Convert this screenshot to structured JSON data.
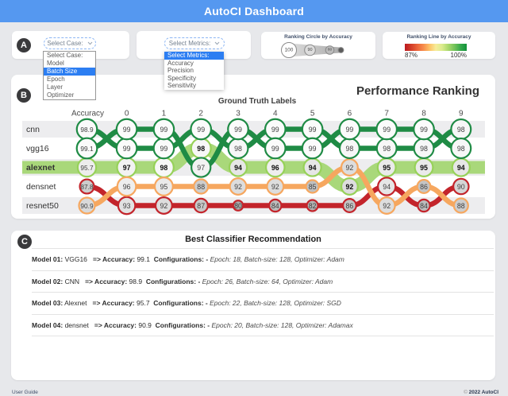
{
  "header": {
    "title": "AutoCI Dashboard"
  },
  "section_a": {
    "badge": "A",
    "case_select": {
      "button_label": "Select Case:",
      "options": [
        "Select Case:",
        "Model",
        "Batch Size",
        "Epoch",
        "Layer",
        "Optimizer"
      ],
      "selected": "Batch Size"
    },
    "metrics_select": {
      "button_label": "Select Metrics:",
      "options": [
        "Select Metrics:",
        "Accuracy",
        "Precision",
        "Specificity",
        "Sensitivity"
      ],
      "selected": "Select Metrics:"
    },
    "circle_legend": {
      "title": "Ranking Circle by Accuracy",
      "circles": [
        {
          "label": "100",
          "r": 9.5,
          "fill": "#ffffff",
          "text_size": 6.5
        },
        {
          "label": "90",
          "r": 6.8,
          "fill": "#dddddd",
          "text_size": 5.5
        },
        {
          "label": "80",
          "r": 5.3,
          "fill": "#bcbcbc",
          "text_size": 4.8
        },
        {
          "label": "",
          "r": 3.4,
          "fill": "#5c5c5c",
          "text_size": 4
        }
      ]
    },
    "line_legend": {
      "title": "Ranking Line by Accuracy",
      "min_label": "87%",
      "max_label": "100%",
      "gradient": [
        "#bb191f",
        "#d23c28",
        "#ea6339",
        "#f78c4b",
        "#fdc266",
        "#f7ec99",
        "#dcec8e",
        "#abd96d",
        "#74c35a",
        "#35a94b",
        "#12913a"
      ]
    }
  },
  "panel_b": {
    "badge": "B",
    "title": "Performance Ranking",
    "axis_title": "Ground Truth Labels"
  },
  "chart_data": {
    "type": "bump",
    "columns": [
      "Accuracy",
      "0",
      "1",
      "2",
      "3",
      "4",
      "5",
      "6",
      "7",
      "8",
      "9"
    ],
    "row_labels": [
      "cnn",
      "vgg16",
      "alexnet",
      "densnet",
      "resnet50"
    ],
    "highlighted_row": "alexnet",
    "colors": {
      "cnn": "#1f8b45",
      "vgg16": "#1f8b45",
      "alexnet": "#a9d87a",
      "densnet": "#f6a75f",
      "resnet50": "#c3242b"
    },
    "circle_stroke": {
      "alexnet": "#97d159"
    },
    "series": [
      {
        "name": "alexnet",
        "thickness": 16,
        "tail": true,
        "rows": [
          3,
          3,
          3,
          2,
          3,
          3,
          3,
          4,
          3,
          3,
          3
        ],
        "values": [
          95.7,
          97,
          98,
          98,
          94,
          96,
          94,
          92,
          95,
          95,
          94
        ]
      },
      {
        "name": "resnet50",
        "thickness": 6.5,
        "tail": false,
        "rows": [
          4,
          5,
          5,
          5,
          5,
          5,
          5,
          5,
          4,
          5,
          4
        ],
        "values": [
          87.8,
          93,
          92,
          87,
          80,
          84,
          82,
          86,
          94,
          84,
          90
        ]
      },
      {
        "name": "densnet",
        "thickness": 6.5,
        "tail": false,
        "rows": [
          5,
          4,
          4,
          4,
          4,
          4,
          4,
          3,
          5,
          4,
          5
        ],
        "values": [
          90.9,
          96,
          95,
          88,
          92,
          92,
          85,
          92,
          92,
          86,
          88
        ]
      },
      {
        "name": "cnn",
        "thickness": 6.5,
        "tail": false,
        "rows": [
          1,
          2,
          2,
          1,
          2,
          1,
          1,
          2,
          2,
          2,
          1
        ],
        "values": [
          98.9,
          99,
          99,
          99,
          98,
          99,
          99,
          98,
          98,
          98,
          98
        ]
      },
      {
        "name": "vgg16",
        "thickness": 6.5,
        "tail": false,
        "rows": [
          2,
          1,
          1,
          3,
          1,
          2,
          2,
          1,
          1,
          1,
          2
        ],
        "values": [
          99.1,
          99,
          99,
          97,
          99,
          99,
          99,
          99,
          99,
          99,
          98
        ]
      }
    ]
  },
  "panel_c": {
    "badge": "C",
    "title": "Best Classifier Recommendation",
    "labels": {
      "arrow_accuracy": "=> Accuracy:",
      "configurations": "Configurations: -"
    },
    "rows": [
      {
        "model_label": "Model 01:",
        "model_name": "VGG16",
        "accuracy": "99.1",
        "config": "Epoch: 18, Batch-size: 128, Optimizer: Adam"
      },
      {
        "model_label": "Model 02:",
        "model_name": "CNN",
        "accuracy": "98.9",
        "config": "Epoch: 26, Batch-size: 64, Optimizer: Adam"
      },
      {
        "model_label": "Model 03:",
        "model_name": "Alexnet",
        "accuracy": "95.7",
        "config": "Epoch: 22, Batch-size: 128, Optimizer: SGD"
      },
      {
        "model_label": "Model 04:",
        "model_name": "densnet",
        "accuracy": "90.9",
        "config": "Epoch: 20, Batch-size: 128, Optimizer: Adamax"
      }
    ]
  },
  "footer": {
    "left": "User Guide",
    "copyright_symbol": "©",
    "copyright_text": "2022 AutoCI"
  }
}
